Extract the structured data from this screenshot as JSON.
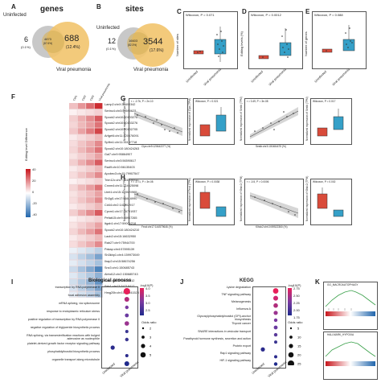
{
  "panels": {
    "A": {
      "letter": "A",
      "title": "genes",
      "left_count": "6",
      "left_pct": "(0.1%)",
      "overlap_count": "4873",
      "overlap_pct": "(87.6%)",
      "right_count": "688",
      "right_pct": "(12.4%)",
      "left_label": "Uninfected",
      "right_label": "Viral pneumonia"
    },
    "B": {
      "letter": "B",
      "title": "sites",
      "left_count": "12",
      "left_pct": "(0.1%)",
      "overlap_count": "16603",
      "overlap_pct": "(82.3%)",
      "right_count": "3544",
      "right_pct": "(17.6%)",
      "left_label": "Uninfected",
      "right_label": "Viral pneumonia"
    },
    "C": {
      "letter": "C",
      "stat": "Wilcoxon, P = 0.071",
      "ylabel": "Number of sites",
      "x1": "Uninfected",
      "x2": "Viral pneumonia"
    },
    "D": {
      "letter": "D",
      "stat": "Wilcoxon, P = 0.0012",
      "ylabel": "Editing levels (%)",
      "x1": "Uninfected",
      "x2": "Viral pneumonia"
    },
    "E": {
      "letter": "E",
      "stat": "Wilcoxon, P = 0.088",
      "ylabel": "Number of genes",
      "x1": "Uninfected",
      "x2": "Viral pneumonia"
    },
    "F": {
      "letter": "F",
      "legend_title": "Editing level Difference",
      "legend_ticks": [
        "40",
        "20",
        "0",
        "-20",
        "-40"
      ],
      "col_labels": [
        "Ctrl1",
        "Ctrl2",
        "Ctrl3",
        "Viral pneumonia"
      ],
      "rows": [
        "Lamp2:chrX:38400342",
        "Serinc4:chr3:56590623",
        "Spock2:chr10:60133278",
        "Spock2:chr10:60133276",
        "Spock2:chr10:60132705",
        "Arfgef4:chr11:120576091",
        "Spfbn1:chr11:35157718",
        "Spock2:chr10:180424263",
        "Gal7:chr9:95864907",
        "Serinc4:chr3:56590617",
        "Rad9:chr10:56135403",
        "Apobec3:chr15:79907547",
        "Trim12c:chr7:104336032",
        "Cnnm4:chr11:114625098",
        "Ltmt1:chr15:123520968",
        "Sh3gl1:chr17:56616990",
        "Cd44:chr2:141902917",
        "Cpxm1:chr17:76791937",
        "Pefab15:chr9:45967265",
        "Itgab1:chr17:59004218",
        "Spock2:chr10:180424210",
        "Laob2:chr15:16632950",
        "Rab27:chr9:75944700",
        "Pakap:chr4:57895139",
        "Sh3kbp1:chr4:159973049",
        "Ilrap2:chr15:58674256",
        "Snx3:chr1:150685743",
        "Abhd12:chr2:150685743",
        "Cdc1:chr13:55475612",
        "Sstr1:chr13:54718417",
        "Hmg20b:chr10:81341528"
      ]
    },
    "G": {
      "letter": "G",
      "p1_stat": "r = -0.7b, P = 2e-10",
      "p1_x": "Clpx:chr9:120642277 (%)",
      "p1_y": "Normalized expression of Clpx (TPM)",
      "p2_stat": "Wilcoxon, P = 0.021",
      "p2_y": "Normalized expression of Clpx (TPM)",
      "p3_stat": "r = 0.49, P = 3e-08",
      "p3_x": "Sestb:chr3:100484475 (%)",
      "p3_y": "Normalized expression of Sestb (TPM)",
      "p4_stat": "Wilcoxon, P = 0.017",
      "p4_y": "Normalized expression of Sestb (TPM)"
    },
    "H": {
      "letter": "H",
      "p1_stat": "r = -0.71, P = 3e-08",
      "p1_x": "Fecd:chr17:144579646 (%)",
      "p1_y": "Normalized expression of Fecd (TPM)",
      "p2_stat": "Wilcoxon, P = 0.0038",
      "p2_y": "Normalized expression of Fecd (TPM)",
      "p3_stat": "r = -0.5, P = 0.0006",
      "p3_x": "Klhdc2:chr10:59522360 (%)",
      "p3_y": "Normalized expression of Klhdc2 (TPM)",
      "p4_stat": "Wilcoxon, P = 0.002",
      "p4_y": "Normalized expression of Klhdc2 (TPM)"
    },
    "I": {
      "letter": "I",
      "title": "Biological process",
      "terms": [
        "transcription by RNA polymerase II",
        "focal adhesion assembly",
        "mRNA splicing, via spliceosome",
        "response to endoplasmic reticulum stress",
        "positive regulation of transcription by RNA polymerase II",
        "negative regulation of triglyceride biosynthetic process",
        "RNA splicing, via transesterification reactions with bulged adenosine as nucleophile",
        "platelet-derived growth factor receptor signaling pathway",
        "phosphatidylinositol biosynthetic process",
        "organelle transport along microtubule"
      ],
      "x1": "Uninfected",
      "x2": "Viral pneumonia",
      "legend_title": "-log10(P)",
      "legend_ticks": [
        "4.0",
        "3.5",
        "3.0",
        "2.5"
      ],
      "size_title": "Odds ratio",
      "size_ticks": [
        "2",
        "3",
        "4",
        "5"
      ]
    },
    "J": {
      "letter": "J",
      "title": "KEGG",
      "terms": [
        "Lysine degradation",
        "TNF signaling pathway",
        "Melanogenesis",
        "Influenza A",
        "Glycosylphosphatidylinositol (GPI)-anchor biosynthesis",
        "Thyroid cancer",
        "SNARE interactions in vesicular transport",
        "Parathyroid hormone synthesis, secretion and action",
        "Protein export",
        "Rap1 signaling pathway",
        "HIF-1 signaling pathway"
      ],
      "x1": "Uninfected",
      "x2": "Viral pneumonia",
      "legend_title": "-log10(P)",
      "legend_ticks": [
        "2.75",
        "2.50",
        "2.25",
        "2.00",
        "1.75"
      ],
      "size_title": "Odds ratio",
      "size_ticks": [
        "5",
        "10",
        "15",
        "20",
        "25"
      ]
    },
    "K": {
      "letter": "K",
      "title1": "GO_MACROAUTOPHAGY",
      "title2": "HALLMARK_HYPOXIA"
    }
  },
  "colors": {
    "venn_left": "#c8c8c8",
    "venn_right": "#f2c46d",
    "uninfected": "#d94b3a",
    "viral": "#35a0c8",
    "heat_pos": "#c8161c",
    "heat_neg": "#2166ac"
  }
}
